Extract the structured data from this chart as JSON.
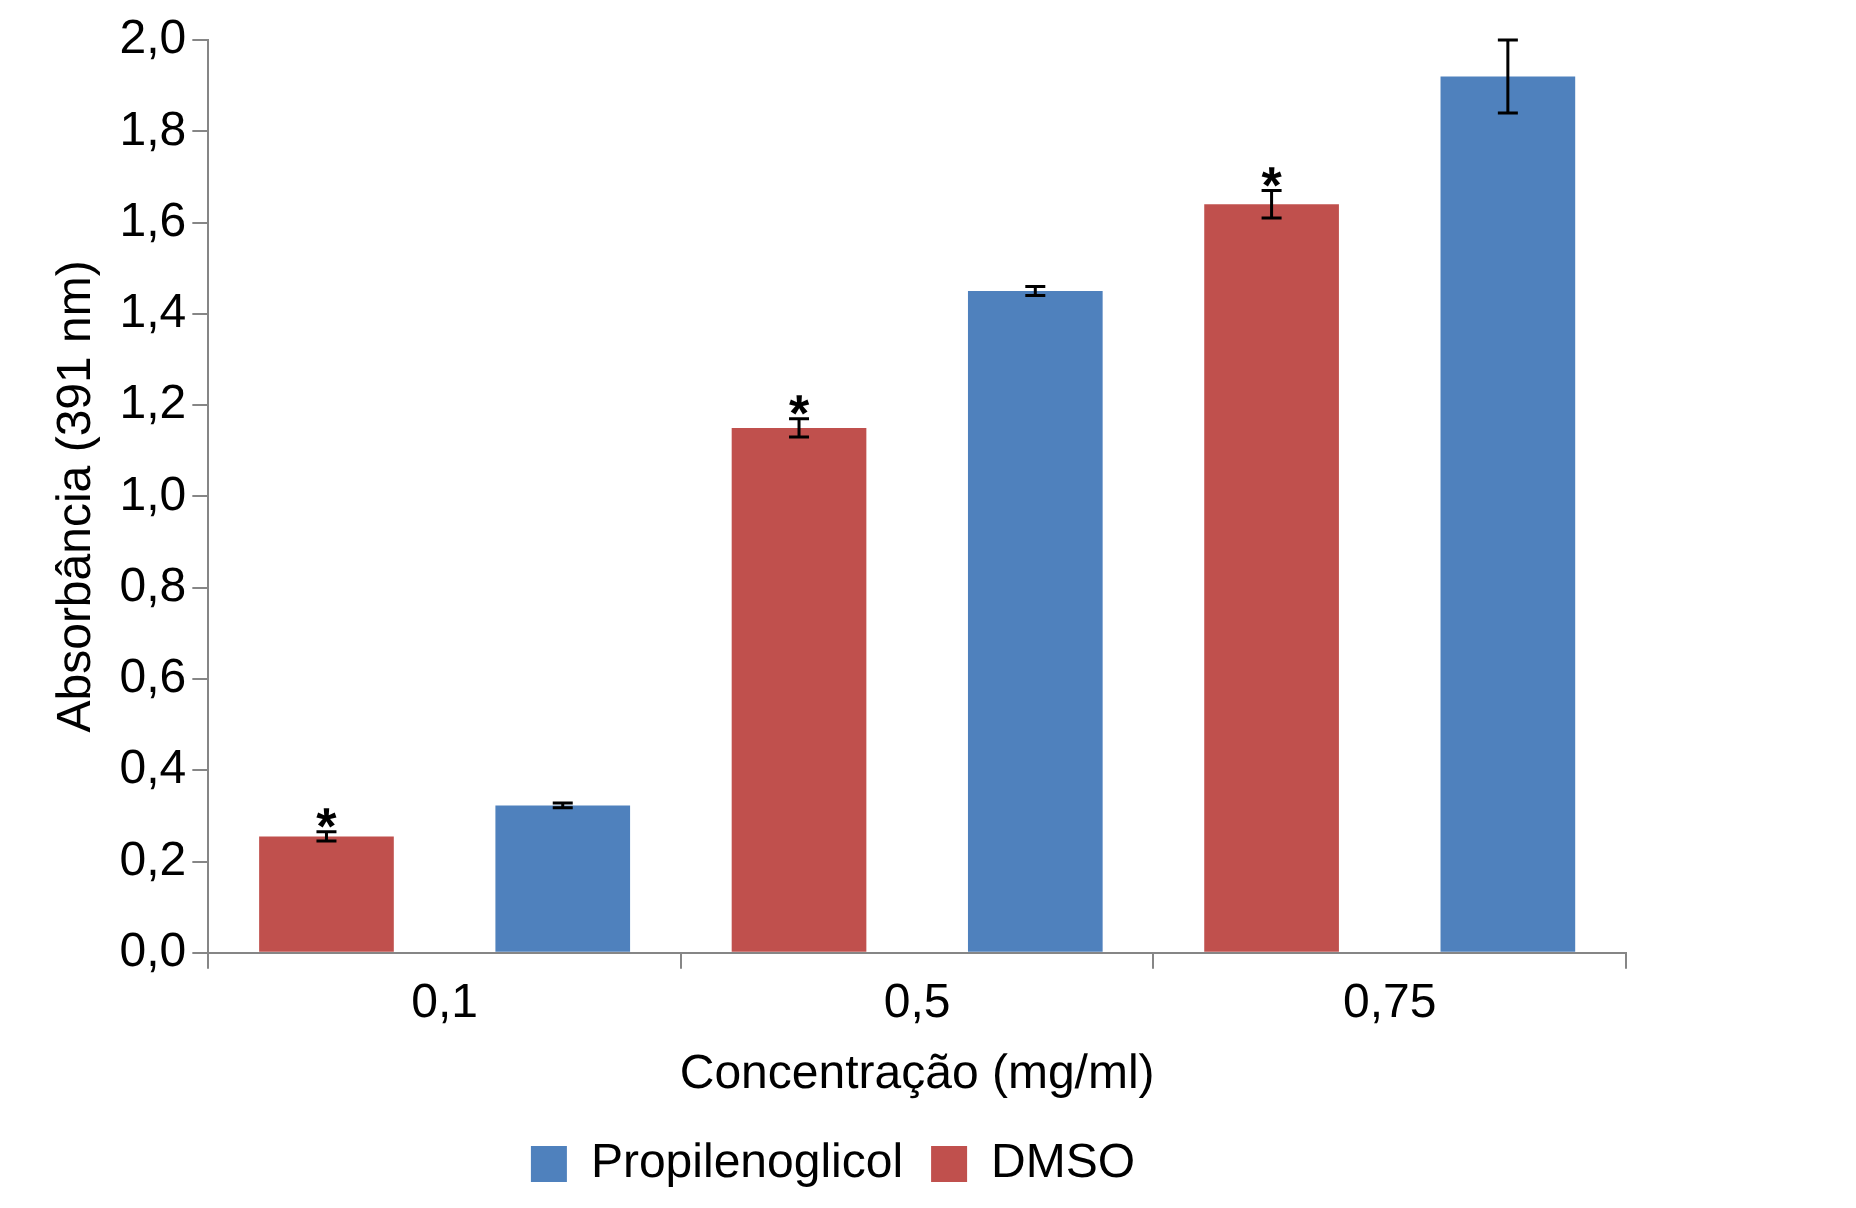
{
  "chart_data": {
    "type": "bar",
    "xlabel": "Concentração (mg/ml)",
    "ylabel": "Absorbância (391 nm)",
    "categories": [
      "0,1",
      "0,5",
      "0,75"
    ],
    "series": [
      {
        "name": "DMSO",
        "color": "#c0504d",
        "values": [
          0.255,
          1.15,
          1.64
        ],
        "errors": [
          0.01,
          0.02,
          0.03
        ],
        "value_labels": [
          "*",
          "*",
          "*"
        ]
      },
      {
        "name": "Propilenoglicol",
        "color": "#4f81bd",
        "values": [
          0.323,
          1.45,
          1.92
        ],
        "errors": [
          0.005,
          0.01,
          0.08
        ]
      }
    ],
    "ylim": [
      0,
      2
    ],
    "yticks": [
      {
        "value": 0,
        "label": "0,0"
      },
      {
        "value": 0.2,
        "label": "0,2"
      },
      {
        "value": 0.4,
        "label": "0,4"
      },
      {
        "value": 0.6,
        "label": "0,6"
      },
      {
        "value": 0.8,
        "label": "0,8"
      },
      {
        "value": 1,
        "label": "1,0"
      },
      {
        "value": 1.2,
        "label": "1,2"
      },
      {
        "value": 1.4,
        "label": "1,4"
      },
      {
        "value": 1.6,
        "label": "1,6"
      },
      {
        "value": 1.8,
        "label": "1,8"
      },
      {
        "value": 2,
        "label": "2,0"
      }
    ],
    "grid": false,
    "legend": "bottom"
  }
}
